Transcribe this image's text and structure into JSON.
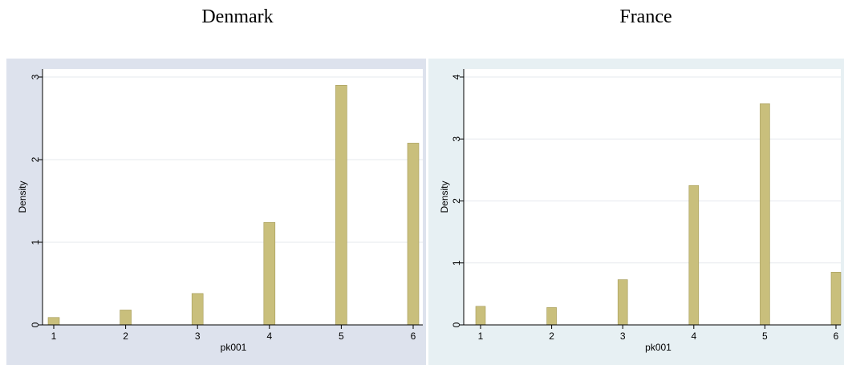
{
  "chart_data": [
    {
      "type": "bar",
      "title": "Denmark",
      "xlabel": "pk001",
      "ylabel": "Density",
      "x": [
        1,
        2,
        3,
        4,
        5,
        6
      ],
      "values": [
        0.09,
        0.18,
        0.38,
        1.24,
        2.9,
        2.2
      ],
      "xticks": [
        "1",
        "2",
        "3",
        "4",
        "5",
        "6"
      ],
      "yticks": [
        "0",
        "1",
        "2",
        "3"
      ],
      "xlim": [
        1,
        6
      ],
      "ylim": [
        0,
        3
      ],
      "grid": true,
      "colors": {
        "bar": "#c9bf7c",
        "bar_edge": "#a59b58",
        "plot_bg": "#ffffff",
        "panel_bg": "#dde2ed"
      }
    },
    {
      "type": "bar",
      "title": "France",
      "xlabel": "pk001",
      "ylabel": "Density",
      "x": [
        1,
        2,
        3,
        4,
        5,
        6
      ],
      "values": [
        0.3,
        0.28,
        0.73,
        2.25,
        3.57,
        0.85
      ],
      "xticks": [
        "1",
        "2",
        "3",
        "4",
        "5",
        "6"
      ],
      "yticks": [
        "0",
        "1",
        "2",
        "3",
        "4"
      ],
      "xlim": [
        1,
        6
      ],
      "ylim": [
        0,
        4
      ],
      "grid": true,
      "colors": {
        "bar": "#c9bf7c",
        "bar_edge": "#a59b58",
        "plot_bg": "#ffffff",
        "panel_bg": "#e7f0f3"
      }
    }
  ]
}
